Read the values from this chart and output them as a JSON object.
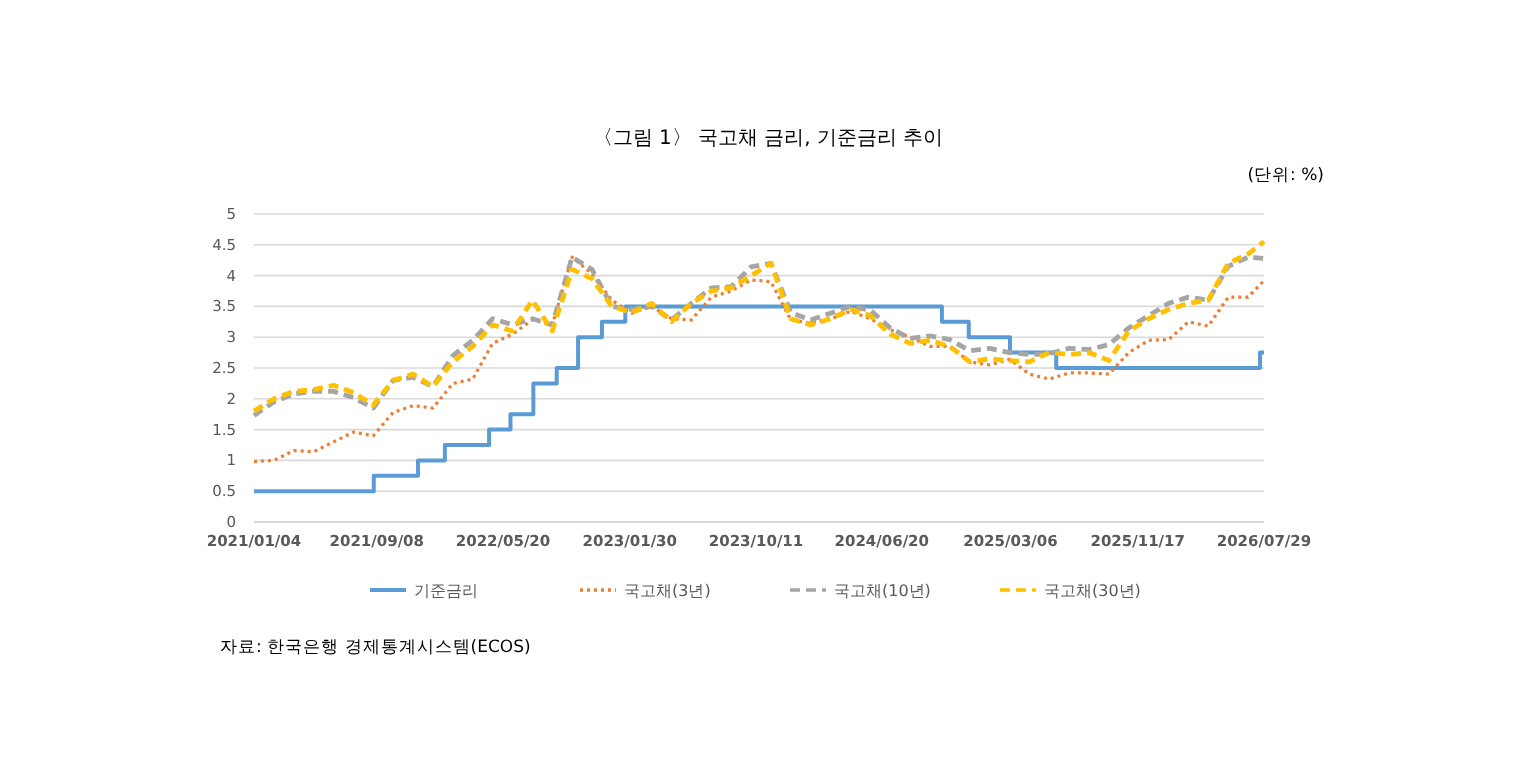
{
  "chart_data": {
    "type": "line",
    "title": "〈그림 1〉 국고채 금리, 기준금리 추이",
    "annotations": [
      "(단위: %)",
      "자료: 한국은행 경제통계시스템(ECOS)"
    ],
    "x": [
      "2021-01-04",
      "2021-02-13",
      "2021-03-25",
      "2021-05-04",
      "2021-06-13",
      "2021-07-23",
      "2021-09-01",
      "2021-10-11",
      "2021-11-20",
      "2021-12-30",
      "2022-02-08",
      "2022-03-20",
      "2022-04-29",
      "2022-06-08",
      "2022-07-18",
      "2022-08-27",
      "2022-10-06",
      "2022-11-15",
      "2022-12-25",
      "2023-02-03",
      "2023-03-15",
      "2023-04-24",
      "2023-06-03",
      "2023-07-13",
      "2023-08-22",
      "2023-10-01",
      "2023-11-10",
      "2023-12-20",
      "2024-01-29",
      "2024-03-09",
      "2024-04-18",
      "2024-05-28",
      "2024-07-07",
      "2024-08-16",
      "2024-09-25",
      "2024-11-04",
      "2024-12-14",
      "2025-01-23",
      "2025-03-04",
      "2025-04-13",
      "2025-05-23",
      "2025-07-02",
      "2025-08-11",
      "2025-09-20",
      "2025-10-30",
      "2025-12-09",
      "2026-01-18",
      "2026-02-27",
      "2026-04-08",
      "2026-05-18",
      "2026-06-27",
      "2026-07-29"
    ],
    "series": [
      {
        "name": "기준금리",
        "color": "#5b9bd5",
        "type": "step",
        "line_style": "solid",
        "x": [
          "2021-01-04",
          "2021-09-02",
          "2021-11-30",
          "2022-01-23",
          "2022-04-22",
          "2022-06-04",
          "2022-07-20",
          "2022-09-05",
          "2022-10-18",
          "2022-12-05",
          "2023-01-21",
          "2024-10-19",
          "2024-12-12",
          "2025-03-05",
          "2025-06-06",
          "2026-07-21",
          "2026-07-29"
        ],
        "values": [
          0.5,
          0.75,
          1.0,
          1.25,
          1.5,
          1.75,
          2.25,
          2.5,
          3.0,
          3.25,
          3.5,
          3.25,
          3.0,
          2.75,
          2.5,
          2.75,
          2.75
        ]
      },
      {
        "name": "국고채(3년)",
        "color": "#ed7d31",
        "line_style": "dotted",
        "values": [
          0.98,
          1.0,
          1.16,
          1.14,
          1.3,
          1.46,
          1.4,
          1.78,
          1.89,
          1.85,
          2.25,
          2.32,
          2.9,
          3.05,
          3.28,
          3.2,
          4.3,
          4.03,
          3.6,
          3.39,
          3.5,
          3.3,
          3.28,
          3.65,
          3.75,
          3.93,
          3.9,
          3.28,
          3.23,
          3.3,
          3.42,
          3.3,
          3.12,
          3.0,
          2.85,
          2.85,
          2.6,
          2.55,
          2.64,
          2.4,
          2.32,
          2.42,
          2.42,
          2.4,
          2.75,
          2.95,
          2.96,
          3.25,
          3.18,
          3.65,
          3.65,
          3.92
        ]
      },
      {
        "name": "국고채(10년)",
        "color": "#a5a5a5",
        "line_style": "dashed",
        "values": [
          1.73,
          1.95,
          2.08,
          2.12,
          2.12,
          2.02,
          1.85,
          2.3,
          2.35,
          2.2,
          2.7,
          2.95,
          3.3,
          3.2,
          3.3,
          3.2,
          4.3,
          4.1,
          3.5,
          3.45,
          3.5,
          3.28,
          3.55,
          3.8,
          3.82,
          4.14,
          4.2,
          3.4,
          3.28,
          3.39,
          3.5,
          3.44,
          3.15,
          2.98,
          3.02,
          2.96,
          2.78,
          2.82,
          2.75,
          2.72,
          2.73,
          2.82,
          2.8,
          2.88,
          3.15,
          3.35,
          3.55,
          3.65,
          3.6,
          4.15,
          4.3,
          4.28
        ]
      },
      {
        "name": "국고채(30년)",
        "color": "#ffc000",
        "line_style": "dashed",
        "values": [
          1.8,
          2.0,
          2.12,
          2.15,
          2.22,
          2.1,
          1.9,
          2.3,
          2.4,
          2.2,
          2.6,
          2.85,
          3.2,
          3.1,
          3.6,
          3.1,
          4.1,
          3.95,
          3.5,
          3.4,
          3.55,
          3.25,
          3.55,
          3.75,
          3.8,
          4.0,
          4.2,
          3.3,
          3.2,
          3.3,
          3.45,
          3.35,
          3.05,
          2.9,
          2.95,
          2.85,
          2.6,
          2.65,
          2.62,
          2.6,
          2.75,
          2.72,
          2.75,
          2.62,
          3.1,
          3.3,
          3.45,
          3.55,
          3.6,
          4.2,
          4.35,
          4.55
        ]
      }
    ],
    "xlim": [
      "2021-01-04",
      "2026-07-29"
    ],
    "xticks": [
      {
        "value": "2021-01-04",
        "label": "2021/01/04"
      },
      {
        "value": "2021-09-08",
        "label": "2021/09/08"
      },
      {
        "value": "2022-05-20",
        "label": "2022/05/20"
      },
      {
        "value": "2023-01-30",
        "label": "2023/01/30"
      },
      {
        "value": "2023-10-11",
        "label": "2023/10/11"
      },
      {
        "value": "2024-06-20",
        "label": "2024/06/20"
      },
      {
        "value": "2025-03-06",
        "label": "2025/03/06"
      },
      {
        "value": "2025-11-17",
        "label": "2025/11/17"
      },
      {
        "value": "2026-07-29",
        "label": "2026/07/29"
      }
    ],
    "ylim": [
      0,
      5
    ],
    "yticks": [
      0,
      0.5,
      1,
      1.5,
      2,
      2.5,
      3,
      3.5,
      4,
      4.5,
      5
    ],
    "grid": "y",
    "legend": "bottom"
  }
}
